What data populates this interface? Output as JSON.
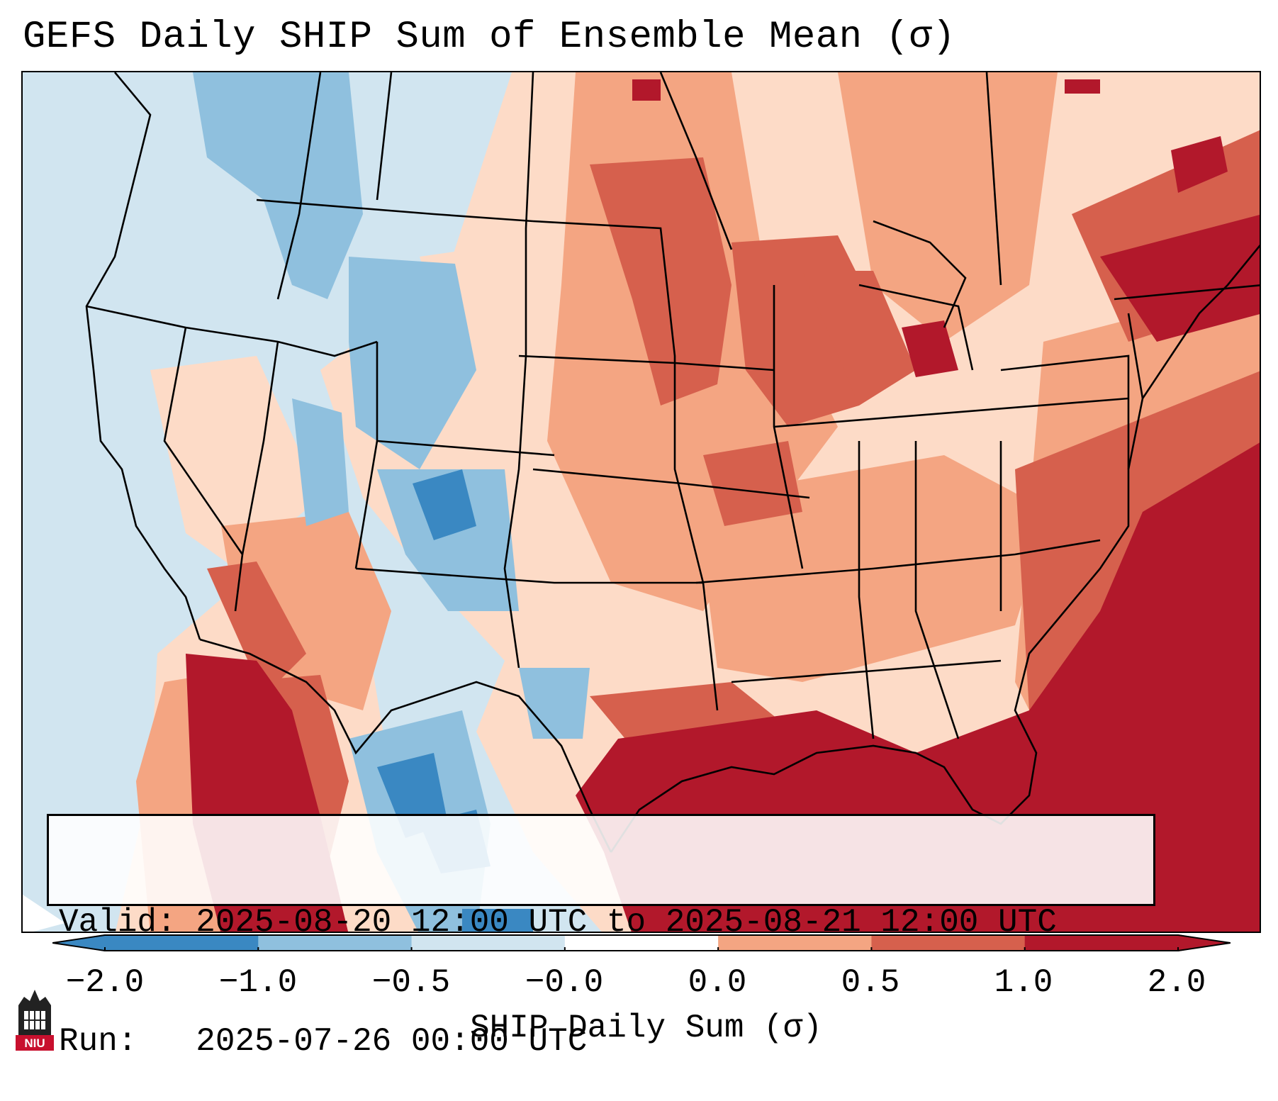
{
  "header": {
    "title": "GEFS Daily SHIP Sum of Ensemble Mean (σ)"
  },
  "info_box": {
    "valid_line": "Valid: 2025-08-20 12:00 UTC to 2025-08-21 12:00 UTC",
    "run_line": "Run:   2025-07-26 00:00 UTC"
  },
  "colorbar": {
    "label": "SHIP Daily Sum (σ)",
    "ticks": [
      "−2.0",
      "−1.0",
      "−0.5",
      "−0.0",
      "0.0",
      "0.5",
      "1.0",
      "2.0"
    ],
    "colors": [
      "#3a88c2",
      "#8fc0de",
      "#d1e5f0",
      "#ffffff",
      "#fddbc7",
      "#f4a582",
      "#d6604d",
      "#b2182b"
    ],
    "extend": "both"
  },
  "map": {
    "region": "Contiguous United States",
    "palette": {
      "strong_negative": "#3a88c2",
      "moderate_negative": "#8fc0de",
      "weak_negative": "#d1e5f0",
      "weak_positive": "#fddbc7",
      "moderate_positive": "#f4a582",
      "strong_positive_a": "#d6604d",
      "strong_positive_b": "#b2182b"
    }
  },
  "logo": {
    "text": "NIU",
    "icon": "university-tower-icon"
  }
}
